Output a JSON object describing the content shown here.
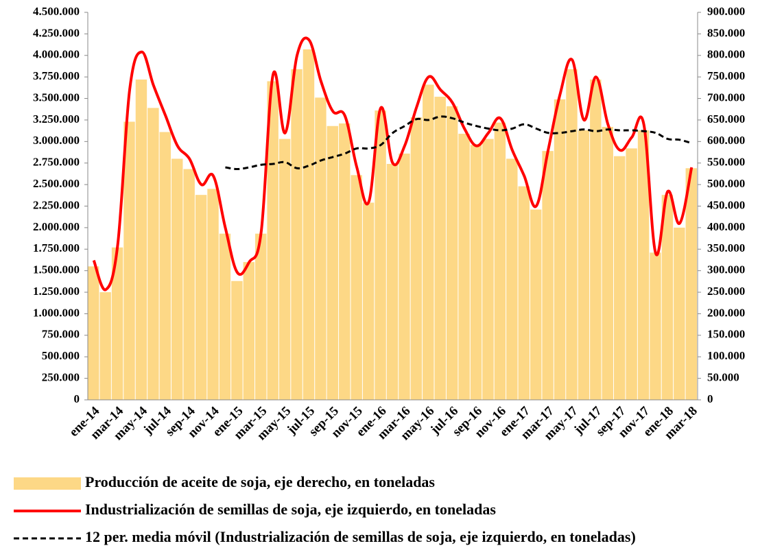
{
  "chart_data": {
    "type": "bar",
    "categories": [
      "ene-14",
      null,
      "mar-14",
      null,
      "may-14",
      null,
      "jul-14",
      null,
      "sep-14",
      null,
      "nov-14",
      null,
      "ene-15",
      null,
      "mar-15",
      null,
      "may-15",
      null,
      "jul-15",
      null,
      "sep-15",
      null,
      "nov-15",
      null,
      "ene-16",
      null,
      "mar-16",
      null,
      "may-16",
      null,
      "jul-16",
      null,
      "sep-16",
      null,
      "nov-16",
      null,
      "ene-17",
      null,
      "mar-17",
      null,
      "may-17",
      null,
      "jul-17",
      null,
      "sep-17",
      null,
      "nov-17",
      null,
      "ene-18",
      null,
      "mar-18"
    ],
    "series": [
      {
        "name": "Producción de aceite de soja, eje derecho, en toneladas",
        "type": "bar",
        "axis": "y2",
        "color": "#fdd886",
        "values": [
          310000,
          250000,
          354000,
          646000,
          744000,
          678000,
          622000,
          560000,
          536000,
          476000,
          490000,
          386000,
          276000,
          320000,
          386000,
          740000,
          606000,
          768000,
          814000,
          702000,
          636000,
          642000,
          522000,
          458000,
          672000,
          548000,
          572000,
          656000,
          732000,
          704000,
          682000,
          618000,
          592000,
          606000,
          644000,
          560000,
          496000,
          442000,
          578000,
          698000,
          768000,
          626000,
          744000,
          634000,
          566000,
          584000,
          626000,
          342000,
          476000,
          400000,
          538000
        ]
      },
      {
        "name": "Industrialización de semillas de soja, eje izquierdo, en toneladas",
        "type": "line",
        "axis": "y",
        "color": "#ff0000",
        "line_style": "solid",
        "values": [
          1620000,
          1280000,
          1800000,
          3600000,
          4040000,
          3650000,
          3300000,
          2950000,
          2800000,
          2500000,
          2600000,
          2000000,
          1480000,
          1600000,
          1950000,
          3780000,
          3100000,
          4000000,
          4180000,
          3700000,
          3350000,
          3300000,
          2700000,
          2300000,
          3390000,
          2750000,
          2950000,
          3400000,
          3750000,
          3600000,
          3450000,
          3150000,
          2950000,
          3100000,
          3270000,
          2900000,
          2600000,
          2250000,
          2900000,
          3550000,
          3950000,
          3250000,
          3750000,
          3200000,
          2900000,
          3050000,
          3200000,
          1700000,
          2420000,
          2050000,
          2700000
        ]
      },
      {
        "name": "12 per. media móvil (Industrialización de semillas de soja, eje izquierdo, en toneladas)",
        "type": "line",
        "axis": "y",
        "color": "#000000",
        "line_style": "dashed",
        "values": [
          null,
          null,
          null,
          null,
          null,
          null,
          null,
          null,
          null,
          null,
          null,
          2700000,
          2680000,
          2700000,
          2730000,
          2740000,
          2760000,
          2690000,
          2720000,
          2780000,
          2820000,
          2860000,
          2920000,
          2920000,
          2960000,
          3100000,
          3180000,
          3260000,
          3250000,
          3290000,
          3270000,
          3220000,
          3180000,
          3150000,
          3130000,
          3150000,
          3200000,
          3150000,
          3100000,
          3100000,
          3120000,
          3140000,
          3120000,
          3140000,
          3130000,
          3130000,
          3120000,
          3100000,
          3030000,
          3020000,
          2980000
        ]
      }
    ],
    "ylim": [
      0,
      4500000
    ],
    "yticks": [
      0,
      {
        "value": 250000,
        "label": "250.000"
      },
      {
        "value": 500000,
        "label": "500.000"
      },
      {
        "value": 750000,
        "label": "750.000"
      },
      {
        "value": 1000000,
        "label": "1.000.000"
      },
      {
        "value": 1250000,
        "label": "1.250.000"
      },
      {
        "value": 1500000,
        "label": "1.500.000"
      },
      {
        "value": 1750000,
        "label": "1.750.000"
      },
      {
        "value": 2000000,
        "label": "2.000.000"
      },
      {
        "value": 2250000,
        "label": "2.250.000"
      },
      {
        "value": 2500000,
        "label": "2.500.000"
      },
      {
        "value": 2750000,
        "label": "2.750.000"
      },
      {
        "value": 3000000,
        "label": "3.000.000"
      },
      {
        "value": 3250000,
        "label": "3.250.000"
      },
      {
        "value": 3500000,
        "label": "3.500.000"
      },
      {
        "value": 3750000,
        "label": "3.750.000"
      },
      {
        "value": 4000000,
        "label": "4.000.000"
      },
      {
        "value": 4250000,
        "label": "4.250.000"
      },
      {
        "value": 4500000,
        "label": "4.500.000"
      }
    ],
    "y2lim": [
      0,
      900000
    ],
    "y2ticks": [
      0,
      {
        "value": 50000,
        "label": "50.000"
      },
      {
        "value": 100000,
        "label": "100.000"
      },
      {
        "value": 150000,
        "label": "150.000"
      },
      {
        "value": 200000,
        "label": "200.000"
      },
      {
        "value": 250000,
        "label": "250.000"
      },
      {
        "value": 300000,
        "label": "300.000"
      },
      {
        "value": 350000,
        "label": "350.000"
      },
      {
        "value": 400000,
        "label": "400.000"
      },
      {
        "value": 450000,
        "label": "450.000"
      },
      {
        "value": 500000,
        "label": "500.000"
      },
      {
        "value": 550000,
        "label": "550.000"
      },
      {
        "value": 600000,
        "label": "600.000"
      },
      {
        "value": 650000,
        "label": "650.000"
      },
      {
        "value": 700000,
        "label": "700.000"
      },
      {
        "value": 750000,
        "label": "750.000"
      },
      {
        "value": 800000,
        "label": "800.000"
      },
      {
        "value": 850000,
        "label": "850.000"
      },
      {
        "value": 900000,
        "label": "900.000"
      }
    ],
    "grid": false,
    "legend": "bottom"
  }
}
